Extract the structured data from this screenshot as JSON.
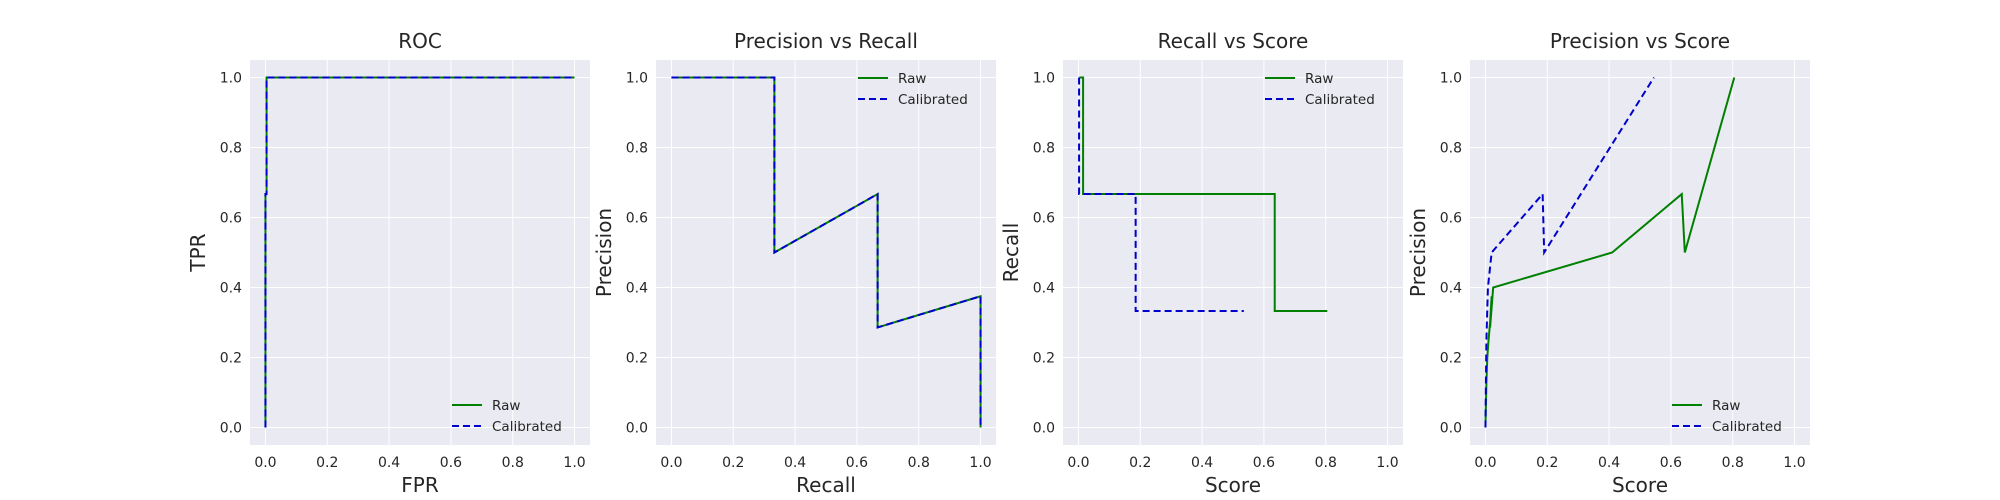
{
  "figure": {
    "background": "#ffffff",
    "axes_facecolor": "#eaeaf2",
    "grid_color": "#ffffff"
  },
  "chart_data": [
    {
      "type": "line",
      "title": "ROC",
      "xlabel": "FPR",
      "ylabel": "TPR",
      "xlim": [
        -0.05,
        1.05
      ],
      "ylim": [
        -0.05,
        1.05
      ],
      "xticks": [
        "0.0",
        "0.2",
        "0.4",
        "0.6",
        "0.8",
        "1.0"
      ],
      "yticks": [
        "0.0",
        "0.2",
        "0.4",
        "0.6",
        "0.8",
        "1.0"
      ],
      "grid": true,
      "legend": "lower-right",
      "series": [
        {
          "name": "Raw",
          "color": "#008000",
          "dash": "solid",
          "x": [
            0,
            0,
            0,
            0.0035,
            0.0035,
            1.0
          ],
          "y": [
            0,
            0.333,
            0.667,
            0.667,
            1.0,
            1.0
          ]
        },
        {
          "name": "Calibrated",
          "color": "#0000cc",
          "dash": "dashed",
          "x": [
            0,
            0,
            0,
            0.0035,
            0.0035,
            1.0
          ],
          "y": [
            0,
            0.333,
            0.667,
            0.667,
            1.0,
            1.0
          ]
        }
      ]
    },
    {
      "type": "line",
      "title": "Precision vs Recall",
      "xlabel": "Recall",
      "ylabel": "Precision",
      "xlim": [
        -0.05,
        1.05
      ],
      "ylim": [
        -0.05,
        1.05
      ],
      "xticks": [
        "0.0",
        "0.2",
        "0.4",
        "0.6",
        "0.8",
        "1.0"
      ],
      "yticks": [
        "0.0",
        "0.2",
        "0.4",
        "0.6",
        "0.8",
        "1.0"
      ],
      "grid": true,
      "legend": "top-right",
      "series": [
        {
          "name": "Raw",
          "color": "#008000",
          "dash": "solid",
          "x": [
            0.0,
            0.333,
            0.333,
            0.667,
            0.667,
            1.0,
            1.0
          ],
          "y": [
            1.0,
            1.0,
            0.5,
            0.667,
            0.286,
            0.375,
            0.0
          ]
        },
        {
          "name": "Calibrated",
          "color": "#0000cc",
          "dash": "dashed",
          "x": [
            0.0,
            0.333,
            0.333,
            0.667,
            0.667,
            1.0,
            1.0
          ],
          "y": [
            1.0,
            1.0,
            0.5,
            0.667,
            0.286,
            0.375,
            0.0
          ]
        }
      ]
    },
    {
      "type": "line",
      "title": "Recall vs Score",
      "xlabel": "Score",
      "ylabel": "Recall",
      "xlim": [
        -0.05,
        1.05
      ],
      "ylim": [
        -0.05,
        1.05
      ],
      "xticks": [
        "0.0",
        "0.2",
        "0.4",
        "0.6",
        "0.8",
        "1.0"
      ],
      "yticks": [
        "0.0",
        "0.2",
        "0.4",
        "0.6",
        "0.8",
        "1.0"
      ],
      "grid": true,
      "legend": "top-right",
      "series": [
        {
          "name": "Raw",
          "color": "#008000",
          "dash": "solid",
          "x": [
            0.003,
            0.015,
            0.015,
            0.635,
            0.635,
            0.805
          ],
          "y": [
            1.0,
            1.0,
            0.667,
            0.667,
            0.333,
            0.333
          ]
        },
        {
          "name": "Calibrated",
          "color": "#0000cc",
          "dash": "dashed",
          "x": [
            0.002,
            0.002,
            0.005,
            0.005,
            0.185,
            0.185,
            0.535
          ],
          "y": [
            1.0,
            0.667,
            0.667,
            0.667,
            0.667,
            0.333,
            0.333
          ]
        }
      ]
    },
    {
      "type": "line",
      "title": "Precision vs Score",
      "xlabel": "Score",
      "ylabel": "Precision",
      "xlim": [
        -0.05,
        1.05
      ],
      "ylim": [
        -0.05,
        1.05
      ],
      "xticks": [
        "0.0",
        "0.2",
        "0.4",
        "0.6",
        "0.8",
        "1.0"
      ],
      "yticks": [
        "0.0",
        "0.2",
        "0.4",
        "0.6",
        "0.8",
        "1.0"
      ],
      "grid": true,
      "legend": "lower-right",
      "series": [
        {
          "name": "Raw",
          "color": "#008000",
          "dash": "solid",
          "x": [
            0.0,
            0.003,
            0.006,
            0.01,
            0.015,
            0.02,
            0.015,
            0.025,
            0.41,
            0.635,
            0.645,
            0.805
          ],
          "y": [
            0.0,
            0.125,
            0.2,
            0.25,
            0.3,
            0.375,
            0.286,
            0.4,
            0.5,
            0.667,
            0.5,
            1.0
          ]
        },
        {
          "name": "Calibrated",
          "color": "#0000cc",
          "dash": "dashed",
          "x": [
            0.0,
            0.003,
            0.008,
            0.02,
            0.185,
            0.19,
            0.545
          ],
          "y": [
            0.0,
            0.25,
            0.4,
            0.5,
            0.667,
            0.5,
            1.0
          ]
        }
      ]
    }
  ]
}
